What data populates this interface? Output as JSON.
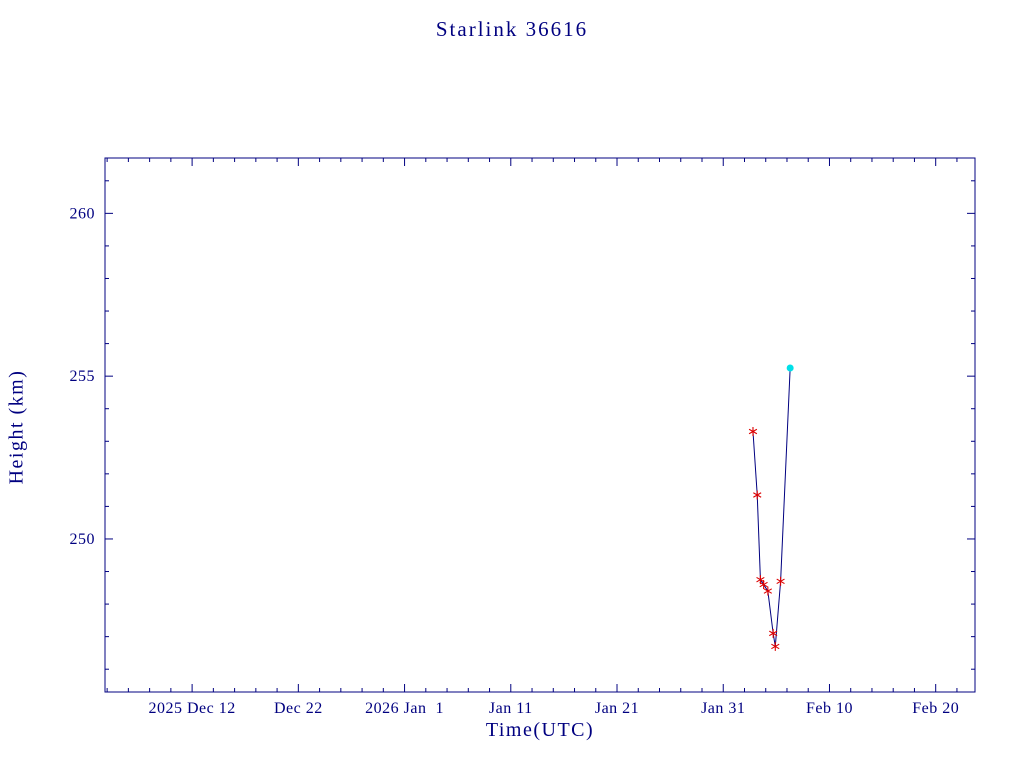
{
  "page": {
    "background": "#ffffff"
  },
  "colors": {
    "axis": "#000080",
    "text": "#000080",
    "line": "#000080",
    "marker": "#dd0000",
    "latest_marker": "#00e0e8"
  },
  "chart_data": {
    "type": "line",
    "title": "Starlink 36616",
    "xlabel": "Time(UTC)",
    "ylabel": "Height (km)",
    "day0": "2025 Dec 12",
    "xlim_days": [
      -8.2,
      73.7
    ],
    "ylim": [
      245.3,
      261.7
    ],
    "grid": false,
    "x_ticks": [
      {
        "day": 0,
        "label": "2025 Dec 12"
      },
      {
        "day": 10,
        "label": "Dec 22"
      },
      {
        "day": 20,
        "label": "2026 Jan  1"
      },
      {
        "day": 30,
        "label": "Jan 11"
      },
      {
        "day": 40,
        "label": "Jan 21"
      },
      {
        "day": 50,
        "label": "Jan 31"
      },
      {
        "day": 60,
        "label": "Feb 10"
      },
      {
        "day": 70,
        "label": "Feb 20"
      }
    ],
    "x_minor_step": 2,
    "y_ticks": [
      250,
      255,
      260
    ],
    "y_minor_step": 1,
    "points": [
      {
        "day": 52.8,
        "height": 253.3,
        "marker": "star"
      },
      {
        "day": 53.2,
        "height": 251.35,
        "marker": "star"
      },
      {
        "day": 53.5,
        "height": 248.75,
        "marker": "star"
      },
      {
        "day": 53.8,
        "height": 248.6,
        "marker": "star"
      },
      {
        "day": 54.2,
        "height": 248.4,
        "marker": "star"
      },
      {
        "day": 54.7,
        "height": 247.1,
        "marker": "star"
      },
      {
        "day": 54.9,
        "height": 246.7,
        "marker": "star"
      },
      {
        "day": 55.4,
        "height": 248.7,
        "marker": "star"
      },
      {
        "day": 56.3,
        "height": 255.25,
        "marker": "dot"
      }
    ]
  }
}
